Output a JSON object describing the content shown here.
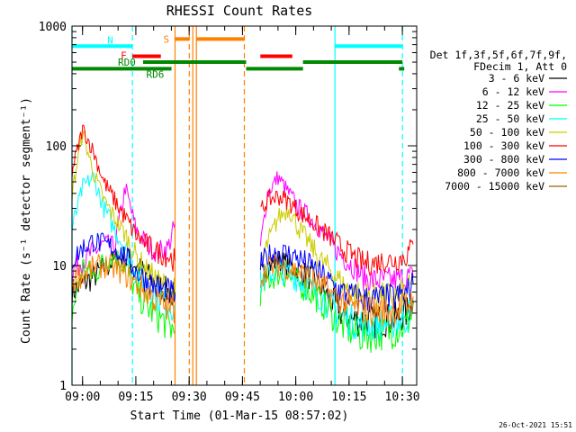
{
  "chart_data": {
    "type": "line",
    "title": "RHESSI Count Rates",
    "xlabel": "Start Time (01-Mar-15 08:57:02)",
    "ylabel": "Count Rate (s⁻¹ detector segment⁻¹)",
    "x_unit": "minutes after 08:57:02",
    "xlim": [
      0,
      97
    ],
    "ylim": [
      1,
      1000
    ],
    "yscale": "log",
    "x_tick_labels": [
      "09:00",
      "09:15",
      "09:30",
      "09:45",
      "10:00",
      "10:15",
      "10:30"
    ],
    "y_tick_labels": [
      "1",
      "10",
      "100",
      "1000"
    ],
    "legend": {
      "header": [
        "Det 1f,3f,5f,6f,7f,9f,",
        "FDecim 1, Att 0"
      ],
      "placement": "right"
    },
    "footer_date": "26-Oct-2021 15:51",
    "gaps": [
      [
        29,
        53
      ]
    ],
    "series": [
      {
        "name": "3 - 6 keV",
        "color": "#000000",
        "x": [
          0,
          3,
          6,
          9,
          12,
          15,
          18,
          21,
          24,
          27,
          29,
          53,
          55,
          58,
          61,
          64,
          67,
          70,
          73,
          76,
          79,
          82,
          85,
          88,
          91,
          94,
          96
        ],
        "y": [
          6,
          7,
          8,
          9.5,
          11,
          12,
          10,
          8.5,
          7,
          6,
          5.5,
          8,
          10,
          11,
          10,
          9,
          8,
          6.5,
          5,
          4,
          3.5,
          3.5,
          3.4,
          3.5,
          3.6,
          4,
          5
        ]
      },
      {
        "name": "6 - 12 keV",
        "color": "#ff00ff",
        "x": [
          0,
          3,
          6,
          9,
          12,
          15,
          18,
          21,
          24,
          27,
          29,
          53,
          55,
          58,
          61,
          64,
          67,
          70,
          73,
          76,
          79,
          82,
          85,
          88,
          91,
          94,
          96
        ],
        "y": [
          9,
          11,
          13,
          15,
          14,
          45,
          20,
          15,
          13,
          14,
          22,
          14,
          40,
          55,
          40,
          30,
          25,
          20,
          15,
          12,
          10,
          8,
          7.5,
          7.5,
          7.5,
          8,
          8
        ]
      },
      {
        "name": "12 - 25 keV",
        "color": "#00ff00",
        "x": [
          0,
          3,
          6,
          9,
          12,
          15,
          18,
          21,
          24,
          27,
          29,
          53,
          55,
          58,
          61,
          64,
          67,
          70,
          73,
          76,
          79,
          82,
          85,
          88,
          91,
          94,
          96
        ],
        "y": [
          4,
          10,
          8,
          11,
          12,
          10,
          6,
          4.5,
          3.8,
          3.2,
          2.8,
          6,
          7.5,
          8.5,
          8,
          7,
          6,
          5,
          4,
          3.2,
          2.8,
          2.6,
          2.7,
          2.8,
          2.9,
          3.2,
          4
        ]
      },
      {
        "name": "25 - 50 keV",
        "color": "#00ffff",
        "x": [
          0,
          3,
          6,
          9,
          12,
          15,
          18,
          21,
          24,
          27,
          29,
          53,
          55,
          58,
          61,
          64,
          67,
          70,
          73,
          76,
          79,
          82,
          85,
          88,
          91,
          94,
          96
        ],
        "y": [
          20,
          45,
          55,
          30,
          20,
          14,
          9,
          7,
          5.5,
          4.8,
          4.5,
          7,
          8.5,
          9,
          8.5,
          7.5,
          6.5,
          5.5,
          4.5,
          3.8,
          3.4,
          3.2,
          3.2,
          3.3,
          3.4,
          3.6,
          4.5
        ]
      },
      {
        "name": "50 - 100 keV",
        "color": "#cccc00",
        "x": [
          0,
          3,
          6,
          9,
          12,
          15,
          18,
          21,
          24,
          27,
          29,
          53,
          55,
          58,
          61,
          64,
          67,
          70,
          73,
          76,
          79,
          82,
          85,
          88,
          91,
          94,
          96
        ],
        "y": [
          40,
          130,
          60,
          35,
          25,
          18,
          12,
          9,
          7.5,
          6.5,
          6,
          10,
          15,
          25,
          30,
          20,
          15,
          11,
          9,
          7,
          6,
          5.5,
          5.5,
          5.5,
          5.6,
          6,
          7
        ]
      },
      {
        "name": "100 - 300 keV",
        "color": "#ff0000",
        "x": [
          0,
          3,
          6,
          9,
          12,
          15,
          18,
          21,
          24,
          27,
          29,
          53,
          55,
          58,
          61,
          64,
          67,
          70,
          73,
          76,
          79,
          82,
          85,
          88,
          91,
          94,
          96
        ],
        "y": [
          60,
          140,
          90,
          50,
          35,
          25,
          18,
          15,
          13,
          12,
          11,
          28,
          35,
          38,
          34,
          28,
          24,
          20,
          17,
          14,
          12,
          10.5,
          10.5,
          11,
          11,
          12,
          15
        ]
      },
      {
        "name": "300 - 800 keV",
        "color": "#0000ff",
        "x": [
          0,
          3,
          6,
          9,
          12,
          15,
          18,
          21,
          24,
          27,
          29,
          53,
          55,
          58,
          61,
          64,
          67,
          70,
          73,
          76,
          79,
          82,
          85,
          88,
          91,
          94,
          96
        ],
        "y": [
          11,
          14,
          16,
          15,
          14,
          12,
          9,
          7.5,
          6.5,
          6,
          5.5,
          10,
          12,
          13,
          12.5,
          11.5,
          10,
          8.5,
          7,
          6,
          5.5,
          5.2,
          5.2,
          5.3,
          5.4,
          5.8,
          7
        ]
      },
      {
        "name": "800 - 7000 keV",
        "color": "#ff8000",
        "x": [
          0,
          3,
          6,
          9,
          12,
          15,
          18,
          21,
          24,
          27,
          29,
          53,
          55,
          58,
          61,
          64,
          67,
          70,
          73,
          76,
          79,
          82,
          85,
          88,
          91,
          94,
          96
        ],
        "y": [
          7.5,
          8.5,
          9.5,
          10,
          9.5,
          8.5,
          7,
          6,
          5,
          4.5,
          4.3,
          8,
          9.5,
          10,
          9.5,
          8.8,
          7.8,
          6.8,
          5.8,
          5,
          4.5,
          4.3,
          4.2,
          4.2,
          4.3,
          4.5,
          5.5
        ]
      },
      {
        "name": "7000 - 15000 keV",
        "color": "#996600",
        "x": [],
        "y": []
      }
    ],
    "vertical_markers": [
      {
        "x": 0,
        "color": "#00ffff",
        "style": "solid"
      },
      {
        "x": 17,
        "color": "#00ffff",
        "style": "dashed"
      },
      {
        "x": 74,
        "color": "#00ffff",
        "style": "solid"
      },
      {
        "x": 93,
        "color": "#00ffff",
        "style": "dashed"
      },
      {
        "x": 29,
        "color": "#ff8000",
        "style": "solid"
      },
      {
        "x": 33,
        "color": "#ff8000",
        "style": "dashed"
      },
      {
        "x": 34,
        "color": "#ff8000",
        "style": "solid"
      },
      {
        "x": 35,
        "color": "#ff8000",
        "style": "solid"
      },
      {
        "x": 48.5,
        "color": "#ff8000",
        "style": "dashed"
      }
    ],
    "flag_bars": [
      {
        "label": "N",
        "color": "#00ffff",
        "y_value": 680,
        "spans": [
          [
            0,
            17
          ],
          [
            74,
            93
          ]
        ]
      },
      {
        "label": "S",
        "color": "#ff8000",
        "y_value": 780,
        "spans": [
          [
            29,
            33
          ],
          [
            35,
            48.5
          ]
        ]
      },
      {
        "label": "F",
        "color": "#ff0000",
        "y_value": 560,
        "spans": [
          [
            17,
            25
          ],
          [
            53,
            62
          ]
        ]
      },
      {
        "label": "RD0",
        "color": "#008800",
        "y_value": 500,
        "spans": [
          [
            20,
            49
          ],
          [
            65,
            93
          ]
        ]
      },
      {
        "label": "RD6",
        "color": "#008800",
        "y_value": 440,
        "spans": [
          [
            0,
            28
          ],
          [
            49,
            65
          ],
          [
            92,
            93.5
          ]
        ]
      }
    ]
  }
}
